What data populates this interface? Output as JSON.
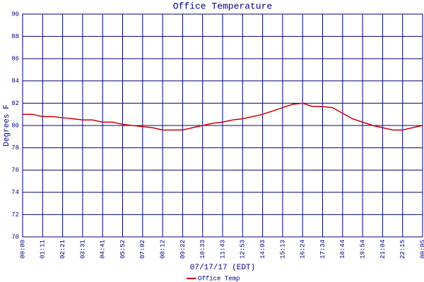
{
  "chart_data": {
    "type": "line",
    "title": "Office Temperature",
    "xlabel": "07/17/17 (EDT)",
    "ylabel": "Degrees F",
    "categories": [
      "00:00",
      null,
      "01:11",
      null,
      "02:21",
      null,
      "03:31",
      null,
      "04:41",
      null,
      "05:52",
      null,
      "07:02",
      null,
      "08:12",
      null,
      "09:22",
      null,
      "10:33",
      null,
      "11:43",
      null,
      "12:53",
      null,
      "14:03",
      null,
      "15:13",
      null,
      "16:24",
      null,
      "17:34",
      null,
      "18:44",
      null,
      "19:54",
      null,
      "21:04",
      null,
      "22:15",
      null,
      "00:05"
    ],
    "series": [
      {
        "name": "Office Temp",
        "color": "#cc0000",
        "values": [
          81.0,
          81.0,
          80.8,
          80.8,
          80.7,
          80.6,
          80.5,
          80.5,
          80.3,
          80.3,
          80.1,
          80.0,
          79.9,
          79.8,
          79.6,
          79.6,
          79.6,
          79.8,
          80.0,
          80.2,
          80.3,
          80.5,
          80.6,
          80.8,
          81.0,
          81.3,
          81.6,
          81.9,
          82.0,
          81.7,
          81.7,
          81.6,
          81.1,
          80.6,
          80.3,
          80.0,
          79.8,
          79.6,
          79.6,
          79.8,
          80.0
        ]
      }
    ],
    "ylim": [
      70,
      90
    ],
    "yticks": [
      70,
      72,
      74,
      76,
      78,
      80,
      82,
      84,
      86,
      88,
      90
    ],
    "grid": true,
    "grid_color": "#000080",
    "legend": "bottom"
  }
}
